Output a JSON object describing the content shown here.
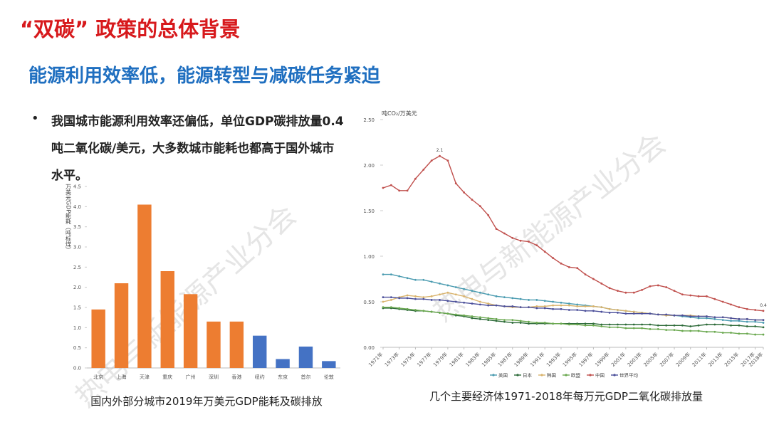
{
  "header": {
    "title": "“双碳” 政策的总体背景",
    "subtitle": "能源利用效率低，能源转型与减碳任务紧迫"
  },
  "bullets": [
    "我国城市能源利用效率还偏低，单位GDP碳排放量0.4吨二氧化碳/美元，大多数城市能耗也都高于国外城市水平。"
  ],
  "watermark": "热电与新能源产业分会",
  "chart_data": [
    {
      "type": "bar",
      "ylabel": "万美元GDP能耗（吨标煤）",
      "caption": "国内外部分城市2019年万美元GDP能耗及碳排放",
      "categories": [
        "北京",
        "上海",
        "天津",
        "重庆",
        "广州",
        "深圳",
        "香港",
        "纽约",
        "东京",
        "首尔",
        "伦敦"
      ],
      "values": [
        1.45,
        2.1,
        4.05,
        2.4,
        1.83,
        1.15,
        1.15,
        0.8,
        0.22,
        0.53,
        0.17
      ],
      "colors": [
        "#ed7d31",
        "#ed7d31",
        "#ed7d31",
        "#ed7d31",
        "#ed7d31",
        "#ed7d31",
        "#ed7d31",
        "#4472c4",
        "#4472c4",
        "#4472c4",
        "#4472c4"
      ],
      "ylim": [
        0,
        4.5
      ],
      "yticks": [
        {
          "value": 0,
          "label": "0.0"
        },
        0.5,
        {
          "value": 1,
          "label": "1.0"
        },
        1.5,
        {
          "value": 2,
          "label": "2.0"
        },
        2.5,
        {
          "value": 3,
          "label": "3.0"
        },
        3.5,
        {
          "value": 4,
          "label": "4.0"
        },
        4.5
      ]
    },
    {
      "type": "line",
      "ylabel": "吨CO₂/万美元",
      "caption": "几个主要经济体1971-2018年每万元GDP二氧化碳排放量",
      "legend": "bottom",
      "x": [
        1971,
        1972,
        1973,
        1974,
        1975,
        1976,
        1977,
        1978,
        1979,
        1980,
        1981,
        1982,
        1983,
        1984,
        1985,
        1986,
        1987,
        1988,
        1989,
        1990,
        1991,
        1992,
        1993,
        1994,
        1995,
        1996,
        1997,
        1998,
        1999,
        2000,
        2001,
        2002,
        2003,
        2004,
        2005,
        2006,
        2007,
        2008,
        2009,
        2010,
        2011,
        2012,
        2013,
        2014,
        2015,
        2016,
        2017,
        2018
      ],
      "xlim": [
        1971,
        2018
      ],
      "xticks": [
        {
          "value": 1971,
          "label": "1971年"
        },
        {
          "value": 1973,
          "label": "1973年"
        },
        {
          "value": 1975,
          "label": "1975年"
        },
        {
          "value": 1977,
          "label": "1977年"
        },
        {
          "value": 1979,
          "label": "1979年"
        },
        {
          "value": 1981,
          "label": "1981年"
        },
        {
          "value": 1983,
          "label": "1983年"
        },
        {
          "value": 1985,
          "label": "1985年"
        },
        {
          "value": 1987,
          "label": "1987年"
        },
        {
          "value": 1989,
          "label": "1989年"
        },
        {
          "value": 1991,
          "label": "1991年"
        },
        {
          "value": 1993,
          "label": "1993年"
        },
        {
          "value": 1995,
          "label": "1995年"
        },
        {
          "value": 1997,
          "label": "1997年"
        },
        {
          "value": 1999,
          "label": "1999年"
        },
        {
          "value": 2001,
          "label": "2001年"
        },
        {
          "value": 2003,
          "label": "2003年"
        },
        {
          "value": 2005,
          "label": "2005年"
        },
        {
          "value": 2007,
          "label": "2007年"
        },
        {
          "value": 2009,
          "label": "2009年"
        },
        {
          "value": 2011,
          "label": "2011年"
        },
        {
          "value": 2013,
          "label": "2013年"
        },
        {
          "value": 2015,
          "label": "2015年"
        },
        {
          "value": 2017,
          "label": "2017年"
        },
        {
          "value": 2018,
          "label": "2018年"
        }
      ],
      "ylim": [
        0,
        2.5
      ],
      "yticks": [
        {
          "value": 0,
          "label": "0.00"
        },
        {
          "value": 0.5,
          "label": "0.50"
        },
        {
          "value": 1,
          "label": "1.00"
        },
        {
          "value": 1.5,
          "label": "1.50"
        },
        {
          "value": 2,
          "label": "2.00"
        },
        {
          "value": 2.5,
          "label": "2.50"
        }
      ],
      "series": [
        {
          "name": "美国",
          "color": "#4a9bb0",
          "values": [
            0.8,
            0.8,
            0.78,
            0.76,
            0.74,
            0.74,
            0.72,
            0.7,
            0.68,
            0.66,
            0.64,
            0.62,
            0.6,
            0.58,
            0.56,
            0.55,
            0.54,
            0.53,
            0.52,
            0.52,
            0.51,
            0.5,
            0.49,
            0.48,
            0.47,
            0.46,
            0.45,
            0.44,
            0.42,
            0.41,
            0.4,
            0.39,
            0.38,
            0.37,
            0.36,
            0.35,
            0.35,
            0.34,
            0.33,
            0.32,
            0.32,
            0.31,
            0.3,
            0.29,
            0.29,
            0.28,
            0.28,
            0.27
          ]
        },
        {
          "name": "日本",
          "color": "#2e6b3a",
          "values": [
            0.43,
            0.43,
            0.42,
            0.41,
            0.4,
            0.4,
            0.39,
            0.38,
            0.37,
            0.35,
            0.34,
            0.32,
            0.31,
            0.3,
            0.29,
            0.28,
            0.27,
            0.27,
            0.26,
            0.26,
            0.26,
            0.26,
            0.26,
            0.26,
            0.26,
            0.26,
            0.26,
            0.25,
            0.25,
            0.25,
            0.25,
            0.25,
            0.25,
            0.25,
            0.24,
            0.24,
            0.24,
            0.24,
            0.23,
            0.24,
            0.25,
            0.25,
            0.25,
            0.24,
            0.24,
            0.23,
            0.23,
            0.22
          ]
        },
        {
          "name": "韩国",
          "color": "#d9b36c",
          "values": [
            0.5,
            0.52,
            0.55,
            0.57,
            0.56,
            0.55,
            0.56,
            0.58,
            0.6,
            0.58,
            0.56,
            0.53,
            0.5,
            0.48,
            0.46,
            0.45,
            0.44,
            0.44,
            0.44,
            0.45,
            0.45,
            0.46,
            0.46,
            0.46,
            0.45,
            0.45,
            0.45,
            0.44,
            0.42,
            0.41,
            0.4,
            0.39,
            0.38,
            0.37,
            0.36,
            0.35,
            0.35,
            0.35,
            0.35,
            0.34,
            0.34,
            0.33,
            0.33,
            0.32,
            0.31,
            0.31,
            0.3,
            0.3
          ]
        },
        {
          "name": "欧盟",
          "color": "#6aa84f",
          "values": [
            0.44,
            0.44,
            0.43,
            0.42,
            0.41,
            0.4,
            0.39,
            0.38,
            0.37,
            0.36,
            0.35,
            0.34,
            0.33,
            0.32,
            0.31,
            0.3,
            0.3,
            0.29,
            0.28,
            0.27,
            0.27,
            0.26,
            0.26,
            0.25,
            0.25,
            0.24,
            0.24,
            0.23,
            0.22,
            0.22,
            0.21,
            0.21,
            0.21,
            0.2,
            0.2,
            0.19,
            0.19,
            0.18,
            0.18,
            0.18,
            0.17,
            0.17,
            0.16,
            0.16,
            0.15,
            0.15,
            0.14,
            0.14
          ]
        },
        {
          "name": "中国",
          "color": "#c0504d",
          "values": [
            1.75,
            1.78,
            1.72,
            1.72,
            1.85,
            1.95,
            2.05,
            2.1,
            2.05,
            1.8,
            1.7,
            1.62,
            1.55,
            1.45,
            1.3,
            1.25,
            1.2,
            1.17,
            1.16,
            1.12,
            1.05,
            0.98,
            0.92,
            0.88,
            0.87,
            0.8,
            0.75,
            0.7,
            0.65,
            0.62,
            0.6,
            0.6,
            0.63,
            0.67,
            0.68,
            0.66,
            0.62,
            0.58,
            0.57,
            0.56,
            0.56,
            0.53,
            0.5,
            0.47,
            0.44,
            0.42,
            0.41,
            0.4
          ],
          "value_labels": [
            null,
            null,
            null,
            null,
            null,
            null,
            null,
            "2.1",
            null,
            null,
            null,
            null,
            null,
            null,
            null,
            null,
            null,
            null,
            null,
            null,
            null,
            null,
            null,
            null,
            null,
            null,
            null,
            null,
            null,
            null,
            null,
            null,
            null,
            null,
            null,
            null,
            null,
            null,
            null,
            null,
            null,
            null,
            null,
            null,
            null,
            null,
            null,
            "0.4"
          ]
        },
        {
          "name": "世界平均",
          "color": "#4b4f9a",
          "values": [
            0.55,
            0.55,
            0.54,
            0.54,
            0.53,
            0.53,
            0.52,
            0.52,
            0.51,
            0.5,
            0.49,
            0.48,
            0.47,
            0.46,
            0.46,
            0.45,
            0.45,
            0.44,
            0.44,
            0.43,
            0.43,
            0.42,
            0.42,
            0.41,
            0.41,
            0.4,
            0.4,
            0.39,
            0.38,
            0.38,
            0.37,
            0.37,
            0.37,
            0.37,
            0.36,
            0.36,
            0.35,
            0.35,
            0.34,
            0.34,
            0.34,
            0.33,
            0.33,
            0.32,
            0.31,
            0.31,
            0.3,
            0.3
          ]
        }
      ]
    }
  ]
}
